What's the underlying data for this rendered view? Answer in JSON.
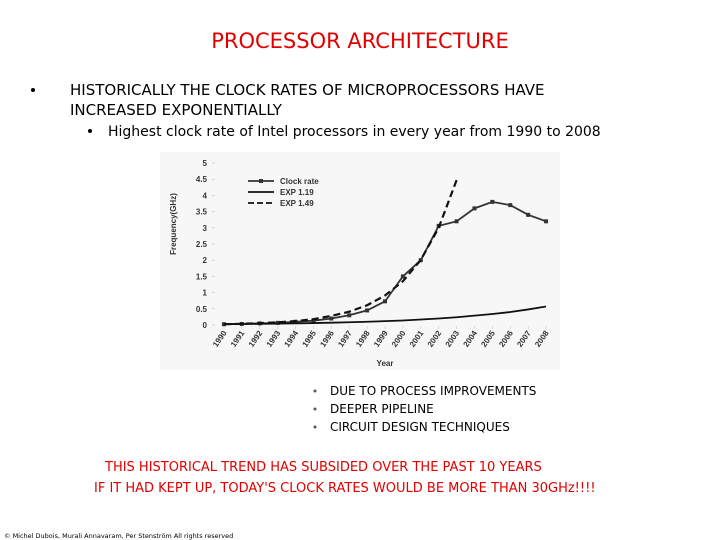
{
  "title": "PROCESSOR ARCHITECTURE",
  "main_bullet": [
    "HISTORICALLY THE CLOCK RATES OF MICROPROCESSORS HAVE",
    "INCREASED EXPONENTIALLY"
  ],
  "sub_bullet": "Highest clock rate of Intel processors in every year from 1990 to 2008",
  "causes": [
    "DUE TO PROCESS IMPROVEMENTS",
    "DEEPER PIPELINE",
    "CIRCUIT DESIGN TECHNIQUES"
  ],
  "conclusion": [
    "THIS HISTORICAL TREND HAS SUBSIDED OVER THE PAST 10 YEARS",
    "IF IT HAD KEPT UP, TODAY'S CLOCK RATES WOULD BE MORE THAN 30GHz!!!!"
  ],
  "footer": "© Michel Dubois, Murali Annavaram, Per Stenström All rights reserved",
  "chart_data": {
    "type": "line",
    "x_label": "Year",
    "y_label": "Frequency(GHz)",
    "x": [
      1990,
      1991,
      1992,
      1993,
      1994,
      1995,
      1996,
      1997,
      1998,
      1999,
      2000,
      2001,
      2002,
      2003,
      2004,
      2005,
      2006,
      2007,
      2008
    ],
    "xlim": [
      1989.5,
      2008.5
    ],
    "xticks": [
      1990,
      1991,
      1992,
      1993,
      1994,
      1995,
      1996,
      1997,
      1998,
      1999,
      2000,
      2001,
      2002,
      2003,
      2004,
      2005,
      2006,
      2007,
      2008
    ],
    "ylim": [
      0,
      5
    ],
    "yticks": [
      0,
      0.5,
      1,
      1.5,
      2,
      2.5,
      3,
      3.5,
      4,
      4.5,
      5
    ],
    "series": [
      {
        "name": "Clock rate",
        "color": "#333333",
        "dash": false,
        "marker": true,
        "values": [
          0.025,
          0.033,
          0.05,
          0.066,
          0.1,
          0.133,
          0.2,
          0.3,
          0.45,
          0.73,
          1.5,
          2.0,
          3.06,
          3.2,
          3.6,
          3.8,
          3.7,
          3.4,
          3.2
        ]
      },
      {
        "name": "EXP 1.19",
        "color": "#111111",
        "dash": false,
        "marker": false,
        "values": [
          0.025,
          0.03,
          0.035,
          0.042,
          0.05,
          0.06,
          0.071,
          0.084,
          0.1,
          0.12,
          0.14,
          0.17,
          0.2,
          0.24,
          0.29,
          0.34,
          0.4,
          0.48,
          0.57
        ]
      },
      {
        "name": "EXP 1.49",
        "color": "#111111",
        "dash": true,
        "marker": false,
        "values": [
          0.025,
          0.037,
          0.056,
          0.083,
          0.12,
          0.18,
          0.28,
          0.41,
          0.61,
          0.91,
          1.35,
          2.01,
          3.0,
          4.47,
          null,
          null,
          null,
          null,
          null
        ]
      }
    ]
  }
}
